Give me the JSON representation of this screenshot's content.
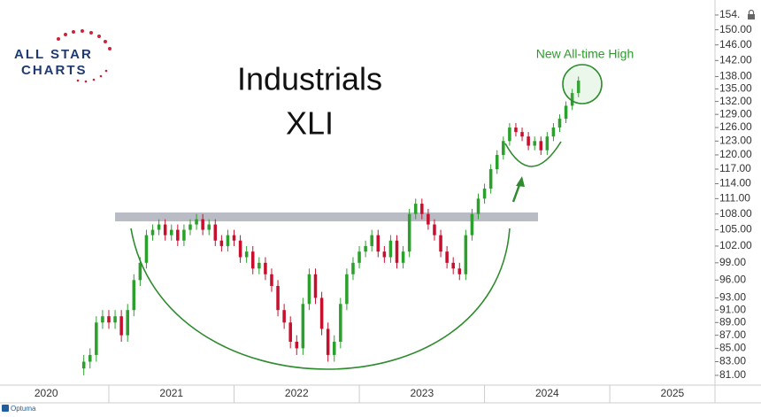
{
  "logo": {
    "line1": "ALL STAR",
    "line2": "CHARTS"
  },
  "footer": "Optuma",
  "chart_data": {
    "type": "candlestick",
    "title": "Industrials",
    "subtitle": "XLI",
    "annotation": "New All-time High",
    "log_scale": true,
    "up_color": "#2ca02c",
    "down_color": "#c8102e",
    "x": [
      2020.8,
      2020.85,
      2020.9,
      2020.95,
      2021.0,
      2021.05,
      2021.1,
      2021.15,
      2021.2,
      2021.25,
      2021.3,
      2021.35,
      2021.4,
      2021.45,
      2021.5,
      2021.55,
      2021.6,
      2021.65,
      2021.7,
      2021.75,
      2021.8,
      2021.85,
      2021.9,
      2021.95,
      2022.0,
      2022.05,
      2022.1,
      2022.15,
      2022.2,
      2022.25,
      2022.3,
      2022.35,
      2022.4,
      2022.45,
      2022.5,
      2022.55,
      2022.6,
      2022.65,
      2022.7,
      2022.75,
      2022.8,
      2022.85,
      2022.9,
      2022.95,
      2023.0,
      2023.05,
      2023.1,
      2023.15,
      2023.2,
      2023.25,
      2023.3,
      2023.35,
      2023.4,
      2023.45,
      2023.5,
      2023.55,
      2023.6,
      2023.65,
      2023.7,
      2023.75,
      2023.8,
      2023.85,
      2023.9,
      2023.95,
      2024.0,
      2024.05,
      2024.1,
      2024.15,
      2024.2,
      2024.25,
      2024.3,
      2024.35,
      2024.4,
      2024.45,
      2024.5,
      2024.55,
      2024.6,
      2024.65,
      2024.7,
      2024.75
    ],
    "open": [
      82,
      83,
      84,
      89,
      90,
      89,
      90,
      87,
      91,
      96,
      99,
      104,
      105,
      106,
      104,
      105,
      103,
      105,
      106,
      107,
      105,
      106,
      103,
      102,
      104,
      103,
      100,
      101,
      98,
      99,
      97,
      95,
      91,
      89,
      86,
      85,
      92,
      97,
      93,
      88,
      84,
      86,
      92,
      97,
      99,
      101,
      102,
      104,
      101,
      100,
      103,
      99,
      101,
      108,
      110,
      108,
      106,
      104,
      101,
      99,
      98,
      97,
      104,
      108,
      111,
      113,
      117,
      120,
      123,
      126,
      125,
      124,
      122,
      123,
      121,
      124,
      126,
      128,
      131,
      134
    ],
    "high": [
      84,
      85,
      90,
      91,
      91,
      91,
      91,
      92,
      97,
      100,
      105,
      106,
      107,
      107,
      106,
      106,
      106,
      107,
      108,
      108,
      107,
      107,
      104,
      105,
      105,
      104,
      102,
      102,
      100,
      100,
      98,
      96,
      92,
      90,
      87,
      93,
      98,
      98,
      94,
      89,
      87,
      93,
      98,
      100,
      102,
      103,
      105,
      105,
      102,
      104,
      104,
      102,
      109,
      111,
      111,
      109,
      107,
      105,
      102,
      100,
      99,
      105,
      109,
      112,
      114,
      118,
      121,
      124,
      127,
      127,
      126,
      125,
      124,
      124,
      125,
      127,
      129,
      132,
      135,
      138
    ],
    "low": [
      81,
      82,
      83,
      88,
      88,
      88,
      86,
      86,
      90,
      95,
      98,
      103,
      104,
      103,
      103,
      102,
      102,
      104,
      105,
      104,
      104,
      102,
      101,
      101,
      102,
      99,
      99,
      97,
      97,
      96,
      94,
      90,
      88,
      85,
      84,
      84,
      91,
      92,
      87,
      83,
      83,
      85,
      91,
      96,
      98,
      100,
      101,
      100,
      99,
      99,
      98,
      98,
      100,
      107,
      107,
      105,
      103,
      100,
      98,
      97,
      96,
      96,
      103,
      107,
      110,
      112,
      116,
      119,
      122,
      124,
      123,
      121,
      121,
      120,
      120,
      123,
      125,
      127,
      130,
      133
    ],
    "close": [
      83,
      84,
      89,
      90,
      89,
      90,
      87,
      91,
      96,
      99,
      104,
      105,
      106,
      104,
      105,
      103,
      105,
      106,
      107,
      105,
      106,
      103,
      102,
      104,
      103,
      100,
      101,
      98,
      99,
      97,
      95,
      91,
      89,
      86,
      85,
      92,
      97,
      93,
      88,
      84,
      86,
      92,
      97,
      99,
      101,
      102,
      104,
      101,
      100,
      103,
      99,
      101,
      108,
      110,
      108,
      106,
      104,
      101,
      99,
      98,
      97,
      104,
      108,
      111,
      113,
      117,
      120,
      123,
      126,
      125,
      124,
      122,
      123,
      121,
      124,
      126,
      128,
      131,
      134,
      137
    ],
    "xlim": [
      2020.131,
      2025.84
    ],
    "xticks": [
      {
        "value": 2020,
        "label": "2020"
      },
      {
        "value": 2021,
        "label": "2021"
      },
      {
        "value": 2022,
        "label": "2022"
      },
      {
        "value": 2023,
        "label": "2023"
      },
      {
        "value": 2024,
        "label": "2024"
      },
      {
        "value": 2025,
        "label": "2025"
      }
    ],
    "ylim": [
      79.6,
      155.7
    ],
    "yticks": [
      {
        "value": 154,
        "label": "154."
      },
      {
        "value": 150,
        "label": "150.00"
      },
      {
        "value": 146,
        "label": "146.00"
      },
      {
        "value": 142,
        "label": "142.00"
      },
      {
        "value": 138,
        "label": "138.00"
      },
      {
        "value": 135,
        "label": "135.00"
      },
      {
        "value": 132,
        "label": "132.00"
      },
      {
        "value": 129,
        "label": "129.00"
      },
      {
        "value": 126,
        "label": "126.00"
      },
      {
        "value": 123,
        "label": "123.00"
      },
      {
        "value": 120,
        "label": "120.00"
      },
      {
        "value": 117,
        "label": "117.00"
      },
      {
        "value": 114,
        "label": "114.00"
      },
      {
        "value": 111,
        "label": "111.00"
      },
      {
        "value": 108,
        "label": "108.00"
      },
      {
        "value": 105,
        "label": "105.00"
      },
      {
        "value": 102,
        "label": "102.00"
      },
      {
        "value": 99,
        "label": "99.00"
      },
      {
        "value": 96,
        "label": "96.00"
      },
      {
        "value": 93,
        "label": "93.00"
      },
      {
        "value": 91,
        "label": "91.00"
      },
      {
        "value": 89,
        "label": "89.00"
      },
      {
        "value": 87,
        "label": "87.00"
      },
      {
        "value": 85,
        "label": "85.00"
      },
      {
        "value": 83,
        "label": "83.00"
      },
      {
        "value": 81,
        "label": "81.00"
      }
    ]
  }
}
